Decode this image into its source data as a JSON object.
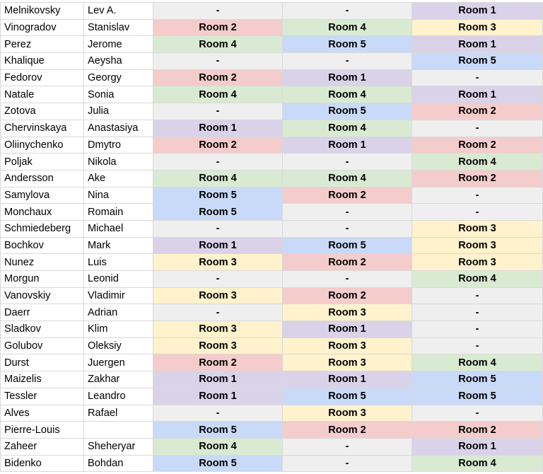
{
  "colors": {
    "none": "#efefef",
    "Room 1": "#d9d2e9",
    "Room 2": "#f4cccc",
    "Room 3": "#fff2cc",
    "Room 4": "#d9ead3",
    "Room 5": "#c9daf8",
    "grid": "#d9d9d9"
  },
  "rows": [
    {
      "last": "Melnikovsky",
      "first": "Lev A.",
      "rooms": [
        "-",
        "-",
        "Room 1"
      ]
    },
    {
      "last": "Vinogradov",
      "first": "Stanislav",
      "rooms": [
        "Room 2",
        "Room 4",
        "Room 3"
      ]
    },
    {
      "last": "Perez",
      "first": "Jerome",
      "rooms": [
        "Room 4",
        "Room 5",
        "Room 1"
      ]
    },
    {
      "last": "Khalique",
      "first": "Aeysha",
      "rooms": [
        "-",
        "-",
        "Room 5"
      ]
    },
    {
      "last": "Fedorov",
      "first": "Georgy",
      "rooms": [
        "Room 2",
        "Room 1",
        "-"
      ]
    },
    {
      "last": "Natale",
      "first": "Sonia",
      "rooms": [
        "Room 4",
        "Room 4",
        "Room 1"
      ]
    },
    {
      "last": "Zotova",
      "first": "Julia",
      "rooms": [
        "-",
        "Room 5",
        "Room 2"
      ]
    },
    {
      "last": "Chervinskaya",
      "first": "Anastasiya",
      "rooms": [
        "Room 1",
        "Room 4",
        "-"
      ]
    },
    {
      "last": "Oliinychenko",
      "first": "Dmytro",
      "rooms": [
        "Room 2",
        "Room 1",
        "Room 2"
      ]
    },
    {
      "last": "Poljak",
      "first": "Nikola",
      "rooms": [
        "-",
        "-",
        "Room 4"
      ]
    },
    {
      "last": "Andersson",
      "first": "Ake",
      "rooms": [
        "Room 4",
        "Room 4",
        "Room 2"
      ]
    },
    {
      "last": "Samylova",
      "first": "Nina",
      "rooms": [
        "Room 5",
        "Room 2",
        "-"
      ]
    },
    {
      "last": "Monchaux",
      "first": "Romain",
      "rooms": [
        "Room 5",
        "-",
        "-"
      ]
    },
    {
      "last": "Schmiedeberg",
      "first": "Michael",
      "rooms": [
        "-",
        "-",
        "Room 3"
      ]
    },
    {
      "last": "Bochkov",
      "first": "Mark",
      "rooms": [
        "Room 1",
        "Room 5",
        "Room 3"
      ]
    },
    {
      "last": "Nunez",
      "first": "Luis",
      "rooms": [
        "Room 3",
        "Room 2",
        "Room 3"
      ]
    },
    {
      "last": "Morgun",
      "first": "Leonid",
      "rooms": [
        "-",
        "-",
        "Room 4"
      ]
    },
    {
      "last": "Vanovskiy",
      "first": "Vladimir",
      "rooms": [
        "Room 3",
        "Room 2",
        "-"
      ]
    },
    {
      "last": "Daerr",
      "first": "Adrian",
      "rooms": [
        "-",
        "Room 3",
        "-"
      ]
    },
    {
      "last": "Sladkov",
      "first": "Klim",
      "rooms": [
        "Room 3",
        "Room 1",
        "-"
      ]
    },
    {
      "last": "Golubov",
      "first": "Oleksiy",
      "rooms": [
        "Room 3",
        "Room 3",
        "-"
      ]
    },
    {
      "last": "Durst",
      "first": "Juergen",
      "rooms": [
        "Room 2",
        "Room 3",
        "Room 4"
      ]
    },
    {
      "last": "Maizelis",
      "first": "Zakhar",
      "rooms": [
        "Room 1",
        "Room 1",
        "Room 5"
      ]
    },
    {
      "last": "Tessler",
      "first": "Leandro",
      "rooms": [
        "Room 1",
        "Room 5",
        "Room 5"
      ]
    },
    {
      "last": "Alves",
      "first": "Rafael",
      "rooms": [
        "-",
        "Room 3",
        "-"
      ]
    },
    {
      "last": "Pierre-Louis",
      "first": "",
      "rooms": [
        "Room 5",
        "Room 2",
        "Room 2"
      ]
    },
    {
      "last": "Zaheer",
      "first": "Sheheryar",
      "rooms": [
        "Room 4",
        "-",
        "Room 1"
      ]
    },
    {
      "last": "Bidenko",
      "first": "Bohdan",
      "rooms": [
        "Room 5",
        "-",
        "Room 4"
      ]
    }
  ]
}
